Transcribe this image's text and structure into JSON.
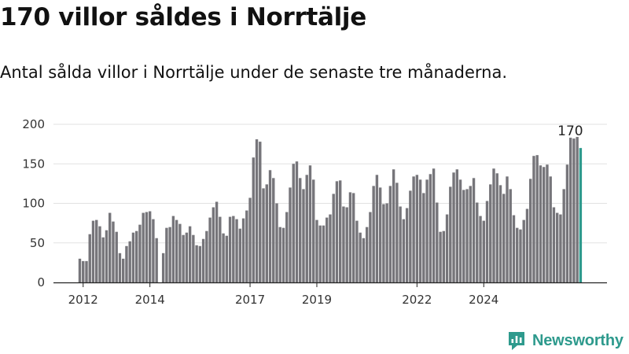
{
  "header": {
    "title": "170 villor såldes i Norrtälje",
    "subtitle": "Antal sålda villor i Norrtälje under de senaste tre månaderna."
  },
  "brand": {
    "name": "Newsworthy",
    "icon": "newsworthy-logo-icon",
    "color": "#2e9a8d"
  },
  "chart_data": {
    "type": "bar",
    "title": "170 villor såldes i Norrtälje",
    "subtitle": "Antal sålda villor i Norrtälje under de senaste tre månaderna.",
    "xlabel": "",
    "ylabel": "",
    "ylim": [
      0,
      200
    ],
    "yticks": [
      0,
      50,
      100,
      150,
      200
    ],
    "xtick_labels": [
      "2012",
      "2014",
      "2017",
      "2019",
      "2022",
      "2024"
    ],
    "xtick_indices": [
      1,
      21,
      51,
      71,
      101,
      121
    ],
    "series_start": "2012-01",
    "bar_color": "#76757a",
    "highlight_color": "#2e9a8d",
    "highlight_label": "170",
    "values": [
      30,
      27,
      27,
      61,
      78,
      79,
      71,
      57,
      66,
      88,
      77,
      64,
      37,
      30,
      46,
      52,
      63,
      65,
      73,
      88,
      89,
      90,
      80,
      56,
      0,
      37,
      69,
      70,
      84,
      79,
      74,
      60,
      63,
      71,
      60,
      47,
      46,
      55,
      65,
      82,
      95,
      102,
      83,
      62,
      59,
      83,
      84,
      80,
      68,
      81,
      91,
      107,
      158,
      181,
      178,
      119,
      124,
      142,
      132,
      100,
      70,
      69,
      89,
      120,
      150,
      153,
      132,
      118,
      136,
      148,
      130,
      79,
      72,
      72,
      82,
      86,
      112,
      128,
      129,
      96,
      95,
      114,
      113,
      78,
      63,
      56,
      70,
      89,
      122,
      136,
      120,
      99,
      100,
      122,
      143,
      126,
      96,
      80,
      94,
      116,
      134,
      136,
      130,
      113,
      130,
      137,
      144,
      101,
      64,
      65,
      86,
      121,
      139,
      143,
      130,
      117,
      118,
      122,
      132,
      101,
      84,
      78,
      103,
      124,
      144,
      138,
      123,
      112,
      134,
      118,
      85,
      69,
      67,
      79,
      93,
      131,
      160,
      161,
      148,
      146,
      149,
      134,
      95,
      88,
      86,
      118,
      149,
      183,
      182,
      184,
      170
    ]
  }
}
